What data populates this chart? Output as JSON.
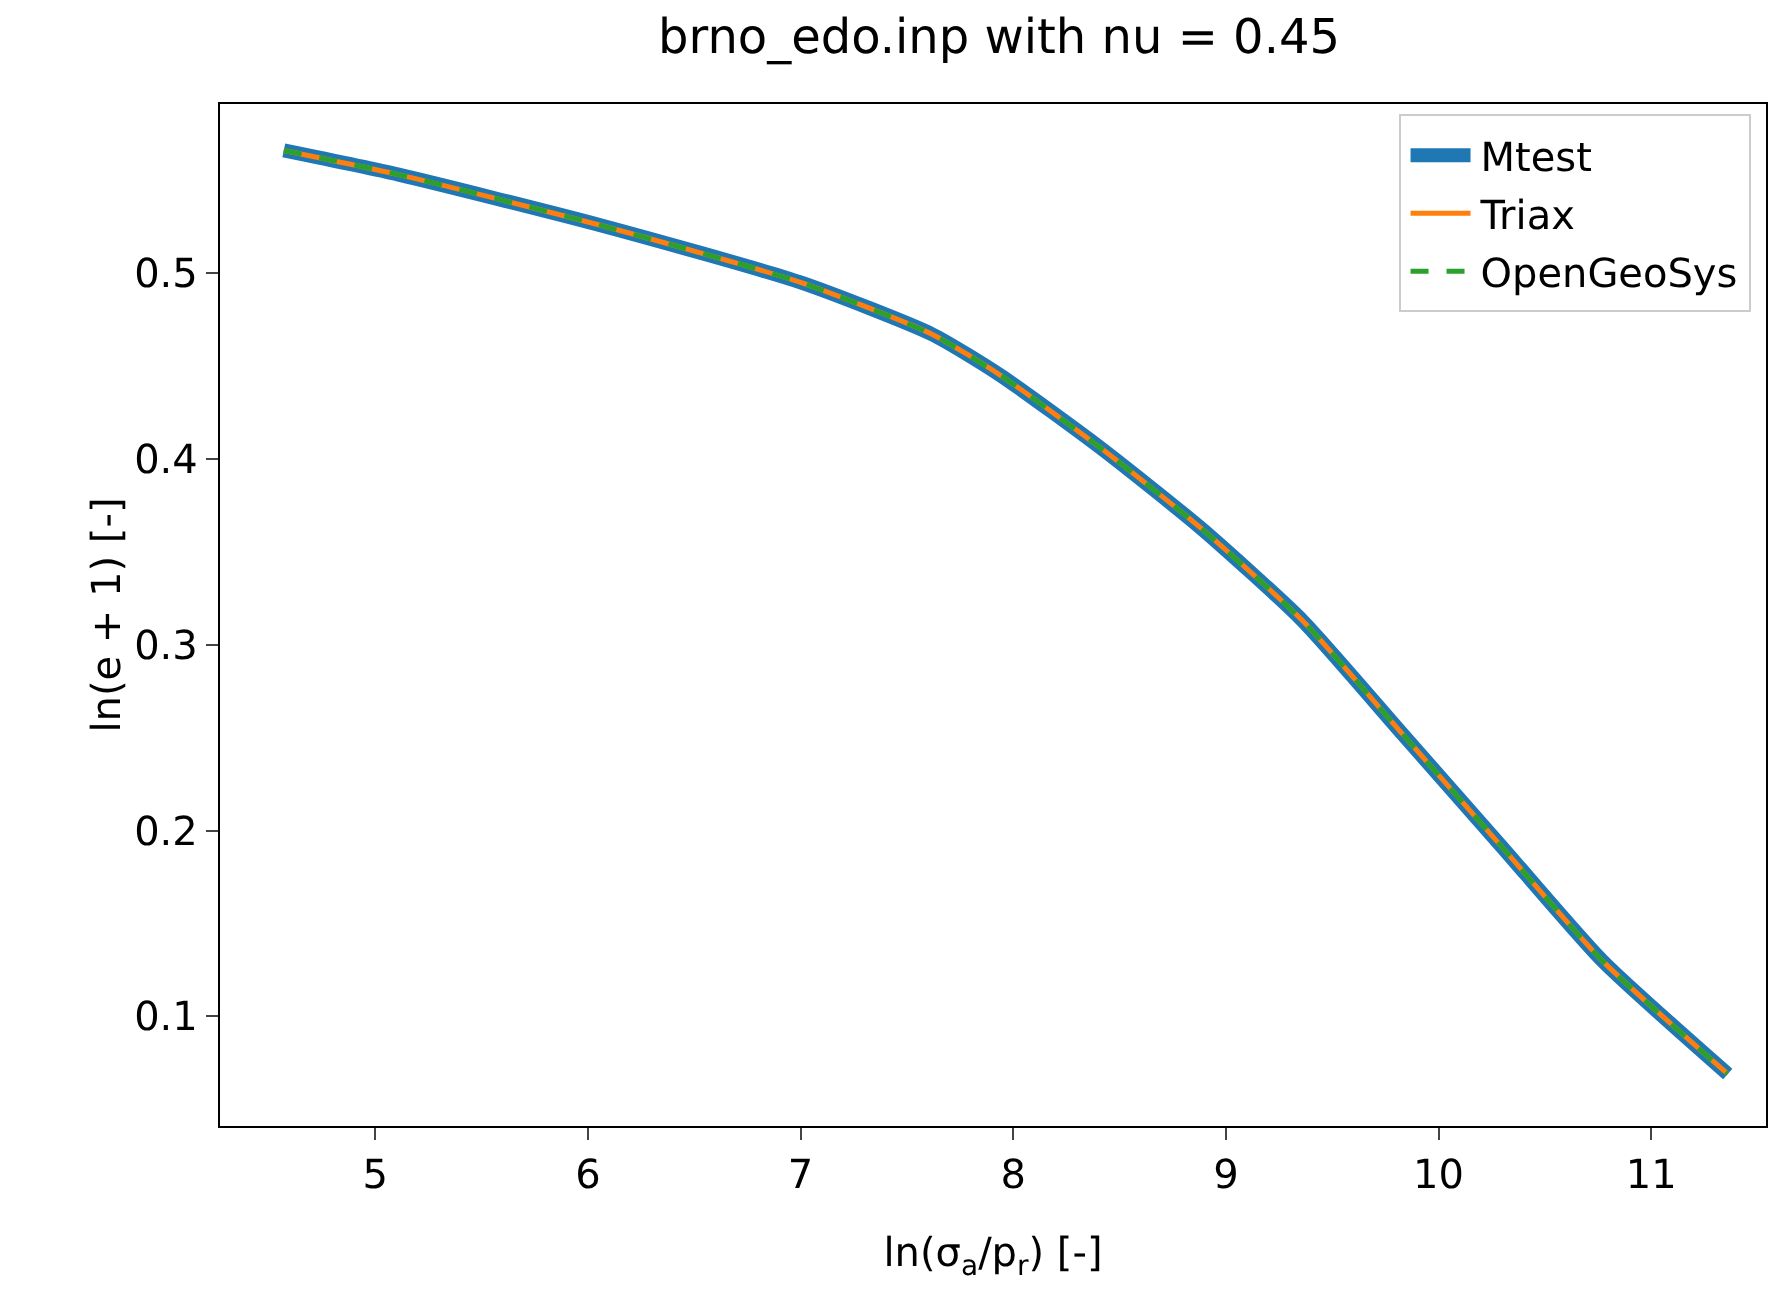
{
  "chart_data": {
    "type": "line",
    "title": "brno_edo.inp with nu = 0.45",
    "xlabel": "ln(σ$_{a}$/p$_{r}$) [-]",
    "ylabel": "ln(e + 1) [-]",
    "xlim": [
      4.27,
      11.54
    ],
    "xticks": [
      5,
      6,
      7,
      8,
      9,
      10,
      11
    ],
    "ylim": [
      0.041,
      0.591
    ],
    "yticks": [
      0.1,
      0.2,
      0.3,
      0.4,
      0.5
    ],
    "grid": false,
    "legend": "top right",
    "series": [
      {
        "name": "Mtest",
        "color": "#1f77b4",
        "line_style": "solid",
        "x": [
          4.57,
          5.11,
          6.05,
          7.0,
          7.62,
          7.94,
          8.41,
          8.88,
          9.36,
          9.83,
          10.3,
          10.77,
          11.36
        ],
        "values": [
          0.566,
          0.553,
          0.526,
          0.495,
          0.467,
          0.445,
          0.406,
          0.363,
          0.313,
          0.252,
          0.191,
          0.13,
          0.069
        ]
      },
      {
        "name": "Triax",
        "color": "#ff7f0e",
        "line_style": "solid",
        "x": [
          4.57,
          5.11,
          6.05,
          7.0,
          7.62,
          7.94,
          8.41,
          8.88,
          9.36,
          9.83,
          10.3,
          10.77,
          11.36
        ],
        "values": [
          0.566,
          0.553,
          0.526,
          0.495,
          0.467,
          0.445,
          0.406,
          0.363,
          0.313,
          0.252,
          0.191,
          0.13,
          0.069
        ]
      },
      {
        "name": "OpenGeoSys",
        "color": "#2ca02c",
        "line_style": "dashed",
        "x": [
          4.57,
          5.11,
          6.05,
          7.0,
          7.62,
          7.94,
          8.41,
          8.88,
          9.36,
          9.83,
          10.3,
          10.77,
          11.36
        ],
        "values": [
          0.566,
          0.553,
          0.526,
          0.495,
          0.467,
          0.445,
          0.406,
          0.363,
          0.313,
          0.252,
          0.191,
          0.13,
          0.069
        ]
      }
    ]
  }
}
